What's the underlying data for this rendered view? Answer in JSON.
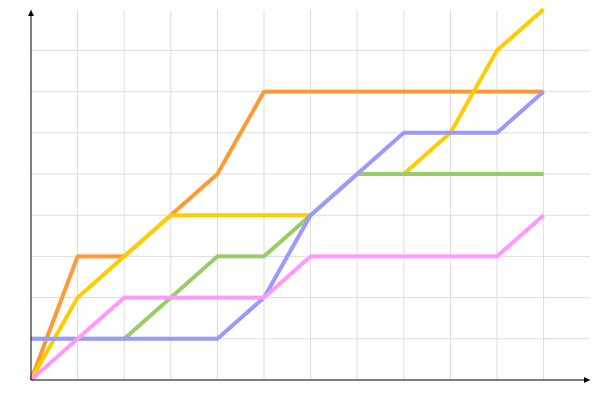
{
  "chart_data": {
    "type": "line",
    "title": "",
    "xlabel": "",
    "ylabel": "",
    "x": [
      0,
      1,
      2,
      3,
      4,
      5,
      6,
      7,
      8,
      9,
      10,
      11
    ],
    "xlim": [
      0,
      12
    ],
    "ylim": [
      0,
      9
    ],
    "grid": true,
    "legend": "none",
    "series": [
      {
        "color": "#ff9933",
        "values": [
          0,
          3,
          3,
          4,
          5,
          7,
          7,
          7,
          7,
          7,
          7,
          7
        ]
      },
      {
        "color": "#ffcc00",
        "values": [
          0,
          2,
          3,
          4,
          4,
          4,
          4,
          5,
          5,
          6,
          8,
          9
        ]
      },
      {
        "color": "#99cc66",
        "values": [
          1,
          1,
          1,
          2,
          3,
          3,
          4,
          5,
          5,
          5,
          5,
          5
        ]
      },
      {
        "color": "#9999ff",
        "values": [
          1,
          1,
          1,
          1,
          1,
          2,
          4,
          5,
          6,
          6,
          6,
          7
        ]
      },
      {
        "color": "#ff99ff",
        "values": [
          0,
          1,
          2,
          2,
          2,
          2,
          3,
          3,
          3,
          3,
          3,
          4
        ]
      }
    ]
  }
}
